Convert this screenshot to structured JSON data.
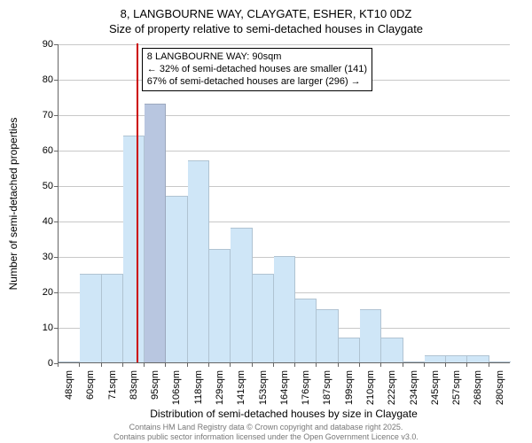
{
  "title_line1": "8, LANGBOURNE WAY, CLAYGATE, ESHER, KT10 0DZ",
  "title_line2": "Size of property relative to semi-detached houses in Claygate",
  "yaxis_title": "Number of semi-detached properties",
  "xaxis_title": "Distribution of semi-detached houses by size in Claygate",
  "footer_line1": "Contains HM Land Registry data © Crown copyright and database right 2025.",
  "footer_line2": "Contains public sector information licensed under the Open Government Licence v3.0.",
  "chart": {
    "type": "histogram",
    "ylim": [
      0,
      90
    ],
    "ytick_step": 10,
    "background_color": "#ffffff",
    "grid_color": "#c8c8c8",
    "bar_color_normal": "#cfe6f7",
    "bar_color_highlight": "#b8c6e0",
    "marker_color": "#cc0000",
    "label_fontsize": 11,
    "axis_title_fontsize": 12,
    "x_labels": [
      "48sqm",
      "60sqm",
      "71sqm",
      "83sqm",
      "95sqm",
      "106sqm",
      "118sqm",
      "129sqm",
      "141sqm",
      "153sqm",
      "164sqm",
      "176sqm",
      "187sqm",
      "199sqm",
      "210sqm",
      "222sqm",
      "234sqm",
      "245sqm",
      "257sqm",
      "268sqm",
      "280sqm"
    ],
    "values": [
      0,
      25,
      25,
      64,
      73,
      47,
      57,
      32,
      38,
      25,
      30,
      18,
      15,
      7,
      15,
      7,
      0,
      2,
      2,
      2,
      0
    ],
    "highlight_index": 4,
    "marker_value_sqm": 90,
    "x_min_sqm": 48,
    "x_max_sqm": 292
  },
  "infobox": {
    "line1": "8 LANGBOURNE WAY: 90sqm",
    "line2": "← 32% of semi-detached houses are smaller (141)",
    "line3": "67% of semi-detached houses are larger (296) →"
  }
}
